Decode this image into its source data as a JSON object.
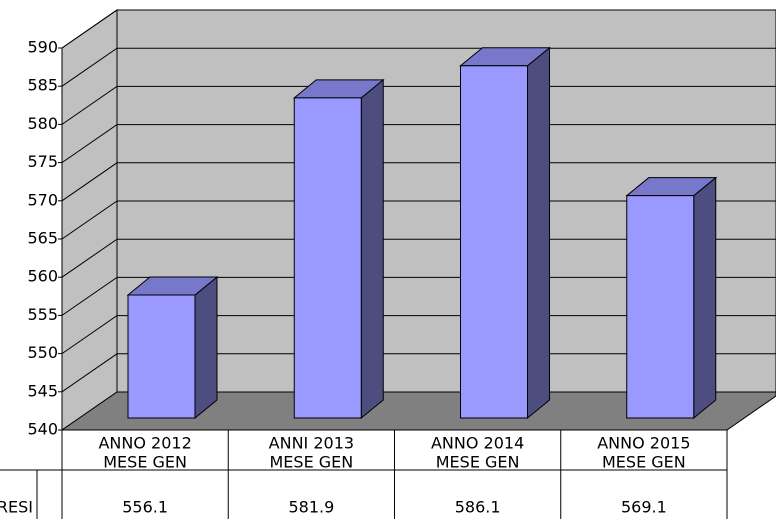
{
  "chart_data": {
    "type": "bar3d",
    "categories": [
      [
        "ANNO 2012",
        "MESE GEN"
      ],
      [
        "ANNI 2013",
        "MESE GEN"
      ],
      [
        "ANNO 2014",
        "MESE GEN"
      ],
      [
        "ANNO 2015",
        "MESE GEN"
      ]
    ],
    "series": [
      {
        "name": "RESI",
        "color": "#9999ff",
        "values": [
          556.1,
          581.9,
          586.1,
          569.1
        ]
      }
    ],
    "ylim": [
      540,
      590
    ],
    "yticks": [
      540,
      545,
      550,
      555,
      560,
      565,
      570,
      575,
      580,
      585,
      590
    ],
    "grid": true
  }
}
